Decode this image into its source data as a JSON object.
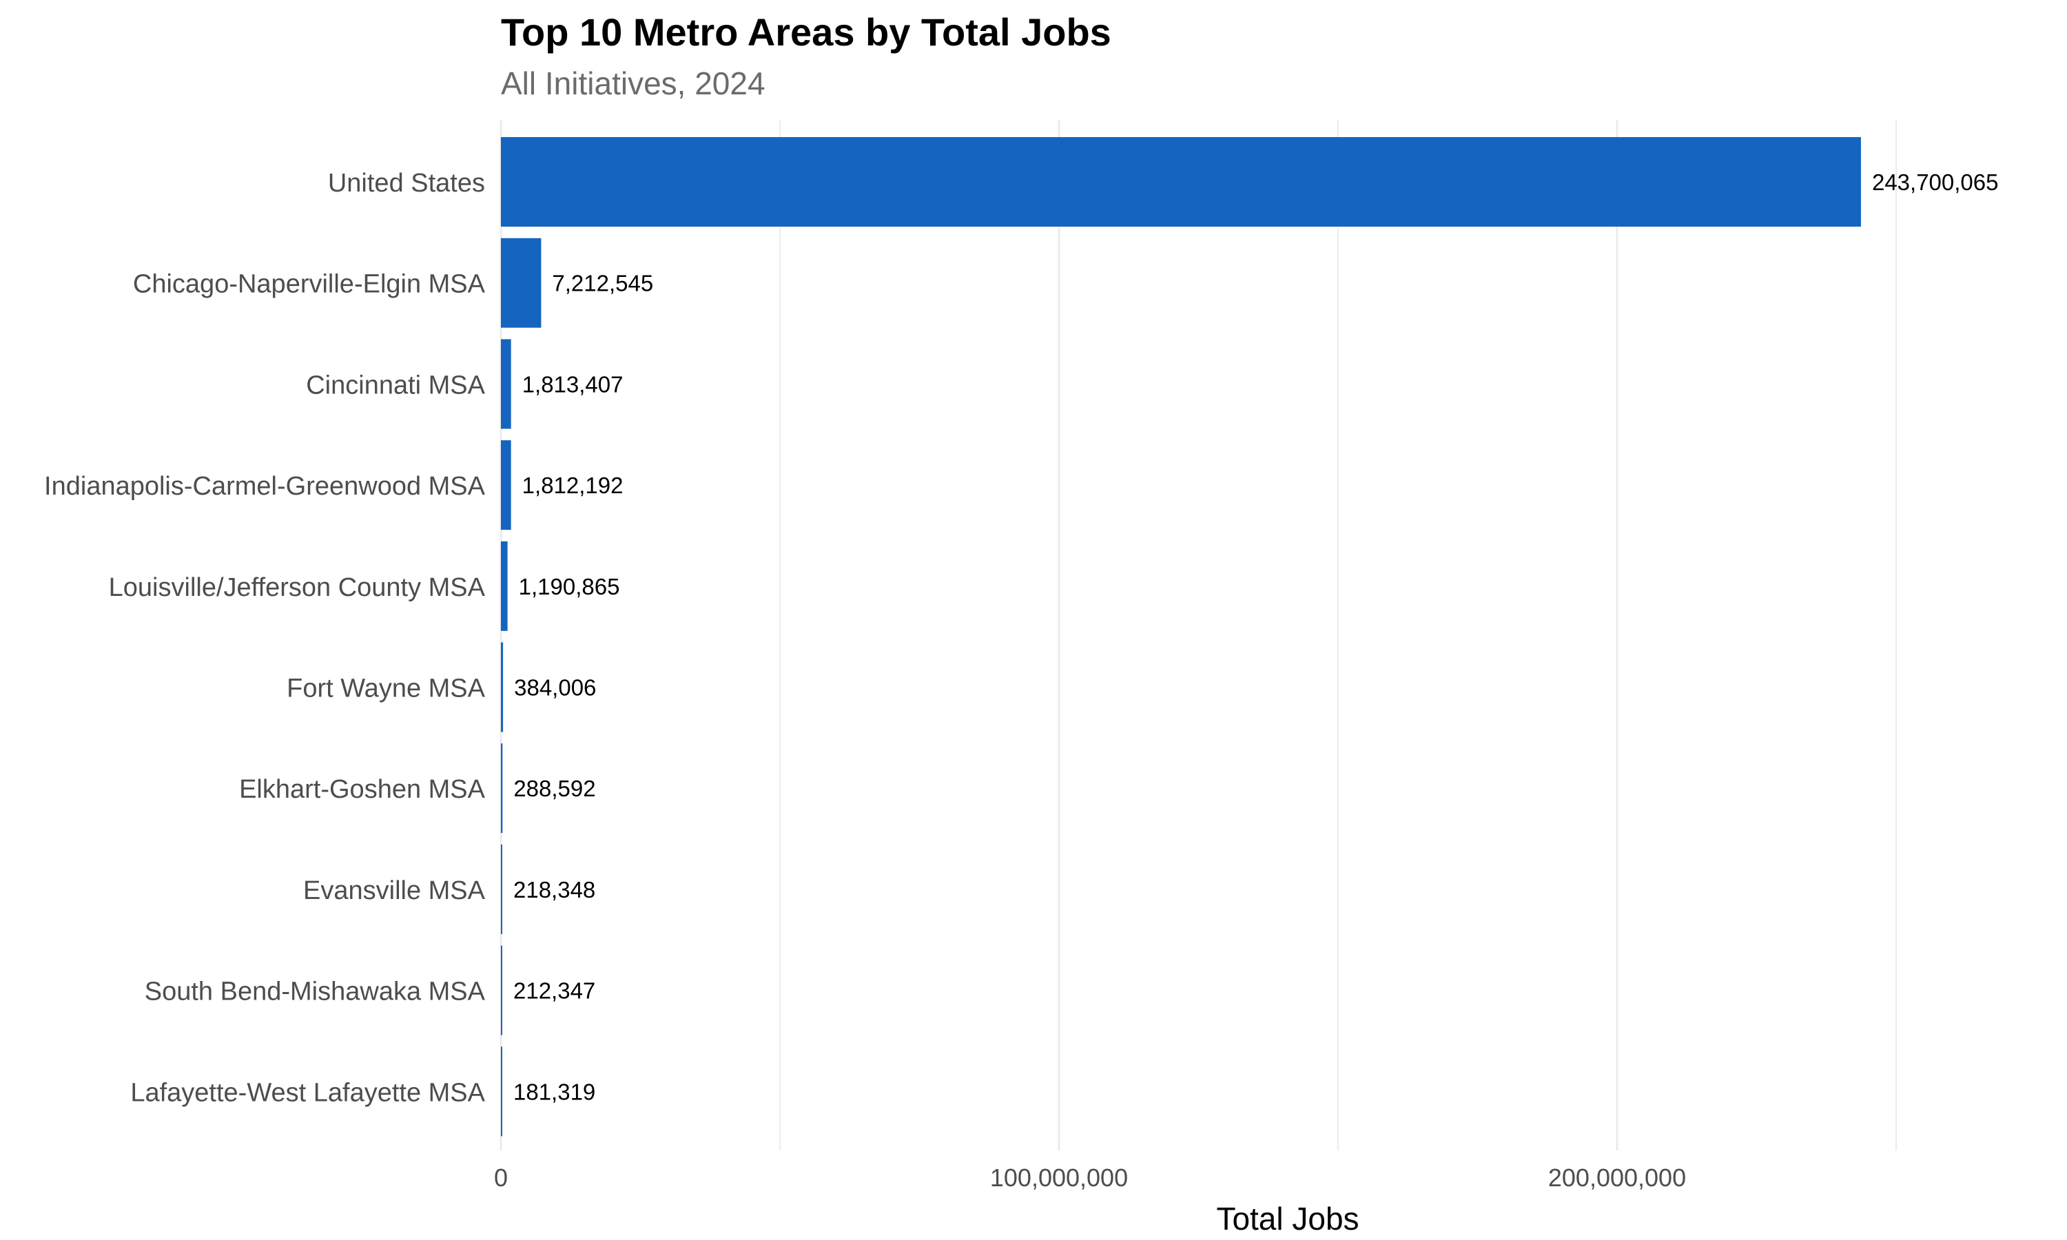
{
  "chart_data": {
    "type": "bar",
    "orientation": "horizontal",
    "title": "Top 10 Metro Areas by Total Jobs",
    "subtitle": "All Initiatives, 2024",
    "xlabel": "Total Jobs",
    "ylabel": "",
    "categories": [
      "United States",
      "Chicago-Naperville-Elgin MSA",
      "Cincinnati MSA",
      "Indianapolis-Carmel-Greenwood MSA",
      "Louisville/Jefferson County MSA",
      "Fort Wayne MSA",
      "Elkhart-Goshen MSA",
      "Evansville MSA",
      "South Bend-Mishawaka MSA",
      "Lafayette-West Lafayette MSA"
    ],
    "values": [
      243700065,
      7212545,
      1813407,
      1812192,
      1190865,
      384006,
      288592,
      218348,
      212347,
      181319
    ],
    "data_labels": [
      "243,700,065",
      "7,212,545",
      "1,813,407",
      "1,812,192",
      "1,190,865",
      "384,006",
      "288,592",
      "218,348",
      "212,347",
      "181,319"
    ],
    "xticks": [
      0,
      100000000,
      200000000
    ],
    "xtick_labels": [
      "0",
      "100,000,000",
      "200,000,000"
    ],
    "xlim": [
      0,
      250000000
    ],
    "grid": true,
    "legend": "none",
    "bar_color": "#1565c0",
    "grid_color": "#ebebeb",
    "category_label_color": "#4d4d4d",
    "tick_label_color": "#4d4d4d",
    "data_label_color": "#000000",
    "subtitle_color": "#6b6b6b"
  }
}
